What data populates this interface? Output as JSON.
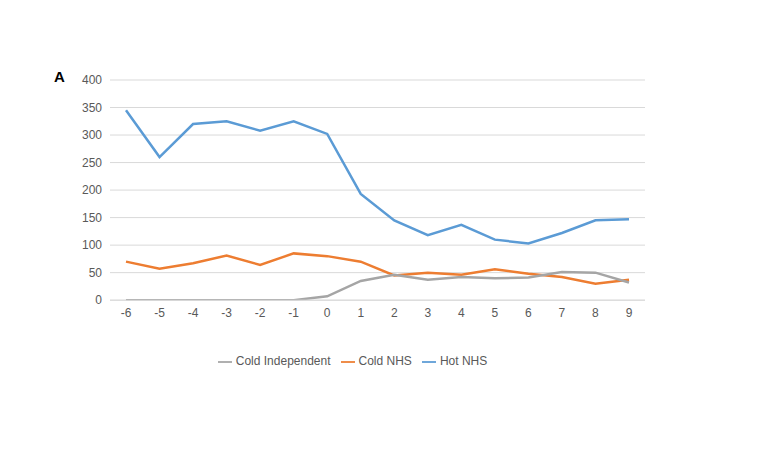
{
  "chart_data": {
    "type": "line",
    "title": "A",
    "categories": [
      "-6",
      "-5",
      "-4",
      "-3",
      "-2",
      "-1",
      "0",
      "1",
      "2",
      "3",
      "4",
      "5",
      "6",
      "7",
      "8",
      "9"
    ],
    "series": [
      {
        "name": "Hot NHS",
        "color": "#5b9bd5",
        "values": [
          345,
          260,
          320,
          325,
          308,
          325,
          302,
          193,
          145,
          118,
          137,
          110,
          103,
          122,
          145,
          147
        ]
      },
      {
        "name": "Cold NHS",
        "color": "#ed7d31",
        "values": [
          70,
          57,
          67,
          81,
          64,
          85,
          80,
          70,
          45,
          50,
          46,
          56,
          48,
          42,
          30,
          37
        ]
      },
      {
        "name": "Cold Independent",
        "color": "#a5a5a5",
        "values": [
          0,
          0,
          0,
          0,
          0,
          0,
          7,
          35,
          46,
          37,
          42,
          40,
          41,
          51,
          50,
          32
        ]
      }
    ],
    "ylim": [
      0,
      400
    ],
    "yticks": [
      0,
      50,
      100,
      150,
      200,
      250,
      300,
      350,
      400
    ],
    "grid": true,
    "legend": "bottom"
  }
}
